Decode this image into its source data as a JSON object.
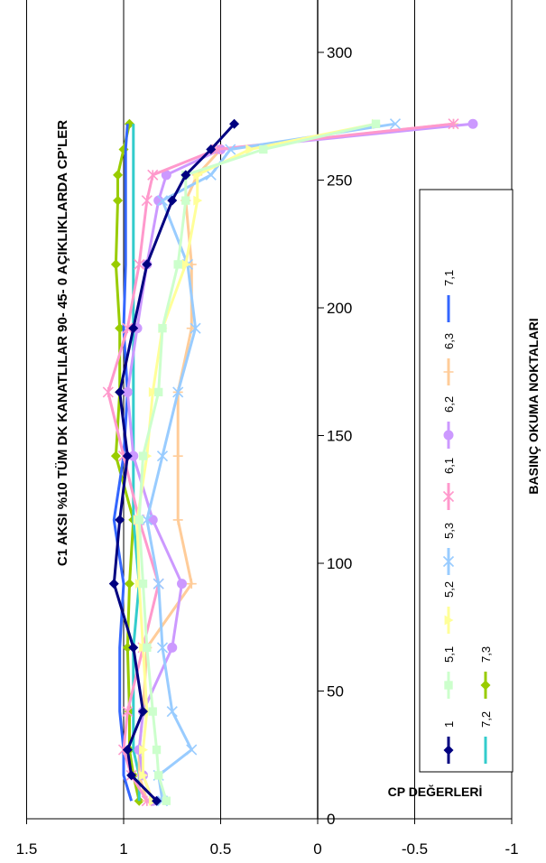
{
  "chart_data": {
    "type": "line",
    "orientation": "rotated-90",
    "title": "C1 AKSI %10 TÜM DK KANATLILAR  90- 45- 0 AÇIKLIKLARDA CP'LER",
    "xlabel": "BASINÇ OKUMA NOKTALARI",
    "ylabel": "CP DEĞERLERİ",
    "x_ticks": [
      "0",
      "50",
      "100",
      "150",
      "200",
      "250",
      "300"
    ],
    "y_ticks": [
      "1.5",
      "1",
      "0.5",
      "0",
      "-0.5",
      "-1"
    ],
    "xlim": [
      0,
      320
    ],
    "ylim": [
      1.5,
      -1
    ],
    "legend_position": "right",
    "x": [
      7,
      17,
      27,
      42,
      67,
      92,
      117,
      142,
      167,
      192,
      217,
      242,
      252,
      262,
      272
    ],
    "series": [
      {
        "name": "1",
        "color": "#000080",
        "marker": "diamond",
        "values": [
          0.83,
          0.96,
          0.98,
          0.9,
          0.95,
          1.05,
          1.02,
          0.98,
          1.02,
          0.95,
          0.88,
          0.75,
          0.68,
          0.55,
          0.43
        ]
      },
      {
        "name": "5,1",
        "color": "#ccffcc",
        "marker": "square",
        "values": [
          0.78,
          0.82,
          0.83,
          0.85,
          0.88,
          0.9,
          0.92,
          0.9,
          0.82,
          0.8,
          0.72,
          0.68,
          0.68,
          0.28,
          -0.3
        ]
      },
      {
        "name": "5,2",
        "color": "#ffff99",
        "marker": "triangle",
        "values": [
          0.85,
          0.9,
          0.9,
          0.88,
          0.9,
          0.92,
          0.93,
          0.88,
          0.85,
          0.8,
          0.68,
          0.62,
          0.62,
          0.35,
          -0.3
        ]
      },
      {
        "name": "5,3",
        "color": "#99ccff",
        "marker": "x",
        "values": [
          0.8,
          0.82,
          0.65,
          0.75,
          0.8,
          0.82,
          0.88,
          0.8,
          0.72,
          0.63,
          0.67,
          0.8,
          0.55,
          0.45,
          -0.4
        ]
      },
      {
        "name": "6,1",
        "color": "#ff99cc",
        "marker": "star",
        "values": [
          0.88,
          0.96,
          1.0,
          0.98,
          0.9,
          0.82,
          0.92,
          1.0,
          1.08,
          0.98,
          0.92,
          0.88,
          0.85,
          0.52,
          -0.7
        ]
      },
      {
        "name": "6,2",
        "color": "#cc99ff",
        "marker": "circle",
        "values": [
          0.85,
          0.9,
          0.92,
          0.9,
          0.75,
          0.7,
          0.85,
          0.95,
          0.98,
          0.93,
          0.88,
          0.82,
          0.78,
          0.5,
          -0.8
        ]
      },
      {
        "name": "6,3",
        "color": "#ffcc99",
        "marker": "plus",
        "values": [
          0.88,
          0.92,
          0.92,
          0.9,
          0.88,
          0.65,
          0.72,
          0.72,
          0.72,
          0.65,
          0.65,
          0.68,
          0.62,
          0.5,
          -0.7
        ]
      },
      {
        "name": "7,1",
        "color": "#3366ff",
        "marker": "none",
        "values": [
          0.96,
          1.0,
          1.0,
          1.02,
          1.02,
          1.0,
          1.05,
          1.0,
          0.98,
          1.0,
          0.99,
          0.99,
          0.99,
          0.99,
          0.98
        ]
      },
      {
        "name": "7,2",
        "color": "#33cccc",
        "marker": "none",
        "values": [
          0.92,
          0.92,
          0.95,
          0.95,
          0.95,
          0.92,
          0.95,
          0.95,
          0.95,
          0.95,
          0.95,
          0.95,
          0.95,
          0.95,
          0.95
        ]
      },
      {
        "name": "7,3",
        "color": "#99cc00",
        "marker": "diamond",
        "values": [
          0.92,
          0.95,
          0.97,
          0.97,
          0.98,
          0.97,
          0.95,
          1.04,
          1.02,
          1.02,
          1.04,
          1.03,
          1.03,
          1.0,
          0.97
        ]
      }
    ]
  }
}
